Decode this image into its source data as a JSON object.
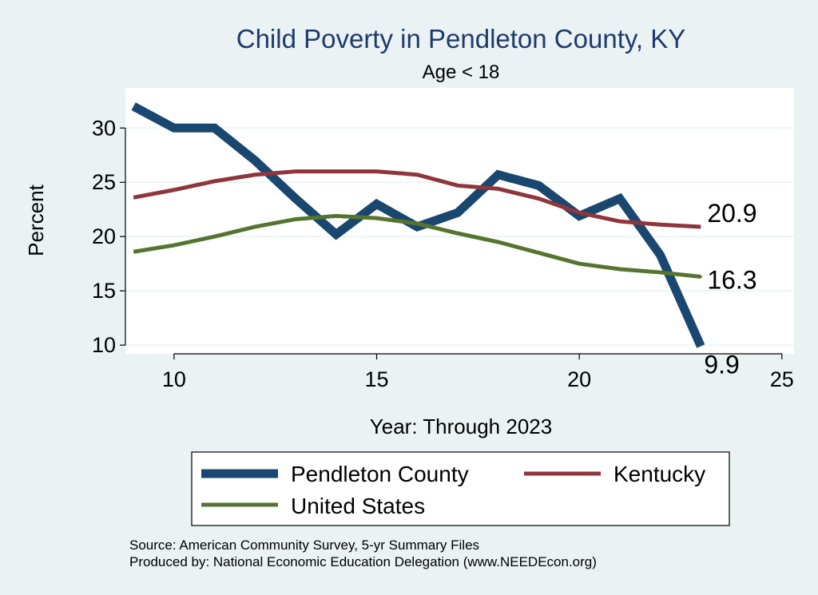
{
  "chart_data": {
    "type": "line",
    "title": "Child Poverty in Pendleton County, KY",
    "subtitle": "Age < 18",
    "xlabel": "Year: Through 2023",
    "ylabel": "Percent",
    "xlim": [
      8.8,
      25.3
    ],
    "ylim": [
      9.2,
      33.7
    ],
    "xticks": [
      10,
      15,
      20,
      25
    ],
    "yticks": [
      10,
      15,
      20,
      25,
      30
    ],
    "grid": true,
    "legend_position": "bottom",
    "series": [
      {
        "name": "Pendleton County",
        "color": "#1a476f",
        "x": [
          9,
          10,
          11,
          12,
          13,
          14,
          15,
          16,
          17,
          18,
          19,
          20,
          21,
          22,
          23
        ],
        "y": [
          32.0,
          30.0,
          30.0,
          27.0,
          23.5,
          20.2,
          23.0,
          20.9,
          22.2,
          25.7,
          24.7,
          21.9,
          23.5,
          18.3,
          9.9
        ],
        "end_label": "9.9"
      },
      {
        "name": "Kentucky",
        "color": "#90353b",
        "x": [
          9,
          10,
          11,
          12,
          13,
          14,
          15,
          16,
          17,
          18,
          19,
          20,
          21,
          22,
          23
        ],
        "y": [
          23.6,
          24.3,
          25.1,
          25.7,
          26.0,
          26.0,
          26.0,
          25.7,
          24.7,
          24.4,
          23.5,
          22.2,
          21.4,
          21.1,
          20.9
        ],
        "end_label": "20.9"
      },
      {
        "name": "United States",
        "color": "#55752f",
        "x": [
          9,
          10,
          11,
          12,
          13,
          14,
          15,
          16,
          17,
          18,
          19,
          20,
          21,
          22,
          23
        ],
        "y": [
          18.6,
          19.2,
          20.0,
          20.9,
          21.6,
          21.9,
          21.7,
          21.2,
          20.3,
          19.5,
          18.5,
          17.5,
          17.0,
          16.7,
          16.3
        ],
        "end_label": "16.3"
      }
    ]
  },
  "footer": {
    "source": "Source: American Community Survey, 5-yr Summary Files",
    "produced_by": "Produced by: National Economic Education Delegation (www.NEEDEcon.org)"
  }
}
